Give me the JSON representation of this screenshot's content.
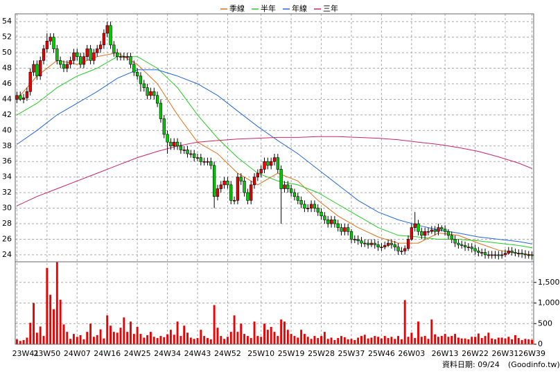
{
  "chart_data": [
    {
      "type": "candlestick",
      "legend": [
        {
          "name": "季線",
          "color": "#e0701a"
        },
        {
          "name": "半年",
          "color": "#22cc22"
        },
        {
          "name": "年線",
          "color": "#2266dd"
        },
        {
          "name": "三年",
          "color": "#cc2266"
        }
      ],
      "up_color": "#ee0000",
      "down_color": "#00cc00",
      "xlim": [
        -0.5,
        154.5
      ],
      "ylim": [
        23.1,
        55
      ],
      "yticks": [
        24,
        26,
        28,
        30,
        32,
        34,
        36,
        38,
        40,
        42,
        44,
        46,
        48,
        50,
        52,
        54
      ],
      "grid": true,
      "open": [
        44,
        44.5,
        44,
        44.2,
        45,
        47.5,
        48.5,
        47,
        49,
        50.5,
        51.5,
        52,
        50.5,
        49,
        48.5,
        48,
        48.5,
        49,
        50,
        49.5,
        48.5,
        49.5,
        50.5,
        49,
        50,
        50.5,
        51,
        52.5,
        53.5,
        51,
        50,
        49.5,
        49.5,
        49.5,
        49.5,
        48.5,
        47.5,
        47,
        46,
        45.5,
        44.5,
        45,
        44.5,
        43.5,
        41.5,
        39.5,
        38.5,
        38,
        38.5,
        38,
        37.5,
        37.5,
        37,
        37,
        36.5,
        36.5,
        36,
        36,
        36,
        35.5,
        31.5,
        32.5,
        33,
        33.5,
        33,
        31,
        31,
        34,
        33.5,
        32,
        31,
        33,
        34,
        34.5,
        35,
        36,
        35.5,
        36,
        36.5,
        35,
        32.5,
        33,
        32.5,
        32,
        31.5,
        31,
        30.5,
        30,
        30,
        30.5,
        30,
        29.5,
        29,
        28.5,
        28,
        28.5,
        28,
        27.5,
        27,
        27.5,
        27,
        26,
        26,
        25.8,
        25.5,
        25.5,
        25.3,
        25.5,
        25.3,
        25,
        25,
        25.2,
        25.5,
        25.3,
        25,
        24.5,
        24.5,
        24.8,
        26,
        27.5,
        28,
        27,
        26.5,
        27,
        27,
        27.2,
        27,
        27.5,
        27.3,
        27,
        26.5,
        26,
        25.5,
        25.3,
        25.2,
        25,
        25,
        24.8,
        24.5,
        24.3,
        24.3,
        24,
        24,
        24,
        24,
        23.9,
        24,
        24.2,
        24.5,
        24.3,
        24.2,
        24.2,
        24.1,
        24,
        24
      ],
      "high": [
        45,
        45,
        44.7,
        45.5,
        48,
        49,
        49,
        49.5,
        51,
        52.5,
        52.5,
        52.5,
        51,
        49.5,
        49,
        49,
        49.5,
        50.5,
        50.5,
        50,
        50,
        51,
        51,
        50.5,
        51,
        51.5,
        53,
        54,
        54,
        51.5,
        50.5,
        50,
        50,
        50,
        50,
        49,
        48,
        47.5,
        46.5,
        46,
        45.5,
        45.5,
        45,
        44,
        42,
        40,
        39,
        39,
        39,
        38.5,
        38,
        38,
        37.5,
        37.5,
        37,
        37,
        36.5,
        36.5,
        36.5,
        36,
        33,
        33.5,
        34,
        34,
        33.5,
        31.5,
        34.5,
        34.5,
        34,
        32.5,
        33.5,
        34.5,
        35,
        35.5,
        36.5,
        36.5,
        36.5,
        37,
        37,
        35.5,
        33.5,
        33.5,
        33,
        32.5,
        32,
        31.5,
        31,
        30.5,
        31,
        31,
        30.5,
        30,
        29.5,
        29,
        29,
        29,
        28.5,
        28,
        28,
        28,
        27.3,
        26.5,
        26.5,
        26.3,
        26,
        26,
        26,
        26,
        25.8,
        25.5,
        25.7,
        26,
        26,
        25.8,
        25.5,
        25,
        25.2,
        26.5,
        28,
        29.5,
        28.5,
        27.5,
        27.5,
        27.5,
        27.7,
        27.7,
        28,
        27.8,
        27.8,
        27.3,
        27,
        26.5,
        26,
        25.8,
        25.7,
        25.5,
        25.5,
        25.3,
        25,
        24.8,
        24.8,
        24.5,
        24.5,
        24.5,
        24.5,
        24.5,
        24.7,
        25,
        25,
        24.8,
        24.7,
        24.7,
        24.6,
        24.5,
        24.4
      ],
      "low": [
        43.5,
        43.8,
        43.5,
        43.8,
        44.5,
        47,
        46.5,
        46.5,
        48.5,
        50,
        51,
        50,
        48.5,
        48,
        47.5,
        47.5,
        48,
        48.5,
        49,
        48,
        48,
        49,
        48.5,
        48.5,
        49.5,
        50,
        50.5,
        52,
        50.5,
        49.5,
        49,
        49,
        49,
        49,
        48,
        47,
        46.5,
        45,
        45,
        44,
        44,
        44,
        43,
        41,
        39,
        37,
        37.5,
        37.5,
        37.5,
        37,
        37,
        36.5,
        36.5,
        36,
        36,
        35.5,
        35.5,
        35.5,
        35,
        30,
        31,
        32,
        32.5,
        32.5,
        30.5,
        30.5,
        30.5,
        33,
        31.5,
        30.5,
        30.5,
        32.5,
        33.5,
        34,
        34.5,
        35,
        35,
        35.5,
        34.5,
        28,
        32,
        32,
        31.5,
        31,
        30.5,
        30,
        29.5,
        29.5,
        29.5,
        29.5,
        29,
        28.5,
        28,
        27.5,
        27.5,
        27.5,
        27,
        26.5,
        26.5,
        26.5,
        25.5,
        25.5,
        25.3,
        25,
        25,
        24.8,
        25,
        24.8,
        24.5,
        24.5,
        24.7,
        25,
        24.8,
        24.5,
        24,
        24,
        24,
        24.5,
        25.8,
        27,
        26.5,
        26,
        26,
        26.5,
        26.7,
        26.5,
        26.5,
        27,
        26.5,
        26,
        25.5,
        25,
        24.8,
        24.8,
        24.5,
        24.5,
        24.3,
        24,
        23.8,
        23.8,
        23.5,
        23.5,
        23.5,
        23.5,
        23.4,
        23.5,
        23.7,
        24,
        23.9,
        23.8,
        23.7,
        23.6,
        23.5,
        23.5,
        23.4
      ],
      "close": [
        44.5,
        44,
        44.2,
        45,
        47.5,
        48.5,
        47,
        49,
        50.5,
        51.5,
        52,
        50.5,
        49,
        48.5,
        48,
        48.5,
        49,
        50,
        49.5,
        48.5,
        49.5,
        50.5,
        49,
        50,
        50.5,
        51,
        52.5,
        53.5,
        51,
        50,
        49.5,
        49.5,
        49.5,
        49.5,
        48.5,
        47.5,
        47,
        46,
        45.5,
        44.5,
        45,
        44.5,
        43.5,
        41.5,
        39.5,
        38.5,
        38,
        38.5,
        38,
        37.5,
        37.5,
        37,
        37,
        36.5,
        36.5,
        36,
        36,
        36,
        35.5,
        31.5,
        32.5,
        33,
        33.5,
        33,
        31,
        31,
        34,
        33.5,
        32,
        31,
        33,
        34,
        34.5,
        35,
        36,
        35.5,
        36,
        36.5,
        35,
        32.5,
        33,
        32.5,
        32,
        31.5,
        31,
        30.5,
        30,
        30,
        30.5,
        30,
        29.5,
        29,
        28.5,
        28,
        28.5,
        28,
        27.5,
        27,
        27.5,
        27,
        26,
        26,
        25.8,
        25.5,
        25.5,
        25.3,
        25.5,
        25.3,
        25,
        25,
        25.2,
        25.5,
        25.3,
        25,
        24.5,
        24.5,
        24.8,
        26,
        27.5,
        28,
        27,
        26.5,
        27,
        27,
        27.2,
        27,
        27.5,
        27.3,
        27,
        26.5,
        26,
        25.5,
        25.3,
        25.2,
        25,
        25,
        24.8,
        24.5,
        24.3,
        24.3,
        24,
        24,
        24,
        24,
        23.9,
        24,
        24.2,
        24.5,
        24.3,
        24.2,
        24.2,
        24.1,
        24,
        24,
        23.9
      ],
      "lines": [
        {
          "x": [
            0,
            6,
            12,
            18,
            24,
            30,
            36,
            42,
            48,
            54,
            60,
            66,
            72,
            78,
            84,
            90,
            96,
            102,
            108,
            114,
            120,
            126,
            132,
            138,
            144,
            150,
            154
          ],
          "values": [
            44,
            47,
            49,
            48.5,
            49.5,
            50,
            48.5,
            46,
            42,
            38.5,
            37,
            34.5,
            33,
            34.5,
            33.5,
            31,
            29,
            27.5,
            26.3,
            25.5,
            25.5,
            26.8,
            26.5,
            25.5,
            24.6,
            24.2,
            24
          ]
        },
        {
          "x": [
            0,
            6,
            12,
            18,
            24,
            30,
            36,
            42,
            48,
            54,
            60,
            66,
            72,
            78,
            84,
            90,
            96,
            102,
            108,
            114,
            120,
            126,
            132,
            138,
            144,
            150,
            154
          ],
          "values": [
            42,
            43.5,
            45.5,
            47,
            48,
            49.5,
            49.5,
            48,
            45.5,
            42,
            39,
            36.5,
            34.5,
            33.5,
            33,
            32,
            30.5,
            29,
            27.5,
            26.5,
            26.3,
            26,
            26,
            25.8,
            25.5,
            25.2,
            24.9
          ]
        },
        {
          "x": [
            0,
            6,
            12,
            18,
            24,
            30,
            36,
            42,
            48,
            54,
            60,
            66,
            72,
            78,
            84,
            90,
            96,
            102,
            108,
            114,
            120,
            126,
            132,
            138,
            144,
            150,
            154
          ],
          "values": [
            38.2,
            40,
            42,
            43.5,
            45,
            46.7,
            47.8,
            47.8,
            47,
            46,
            44.5,
            42.5,
            40.5,
            38.7,
            37,
            35,
            33,
            31,
            29.5,
            28.5,
            27.8,
            27.2,
            26.8,
            26.3,
            26,
            25.7,
            25.4
          ]
        },
        {
          "x": [
            0,
            6,
            12,
            18,
            24,
            30,
            36,
            42,
            48,
            54,
            60,
            66,
            72,
            78,
            84,
            90,
            96,
            102,
            108,
            114,
            120,
            126,
            132,
            138,
            144,
            150,
            154
          ],
          "values": [
            30.3,
            31.5,
            32.5,
            33.5,
            34.5,
            35.5,
            36.5,
            37.3,
            38,
            38.5,
            38.7,
            38.9,
            39,
            39.1,
            39.1,
            39.2,
            39.2,
            39.1,
            39,
            38.8,
            38.5,
            38.2,
            37.8,
            37.3,
            36.6,
            35.8,
            35.1
          ]
        }
      ]
    },
    {
      "type": "bar",
      "color": "#ee0000",
      "ylim": [
        0,
        2000
      ],
      "yticks": [
        0,
        500,
        {
          "value": 1000,
          "label": "1,000"
        },
        {
          "value": 1500,
          "label": "1,500"
        }
      ],
      "xlim": [
        -0.5,
        154.5
      ],
      "xticks": [
        {
          "value": 0,
          "label": "23W41"
        },
        {
          "value": 9,
          "label": "23W50"
        },
        {
          "value": 18,
          "label": "24W07"
        },
        {
          "value": 27,
          "label": "24W16"
        },
        {
          "value": 36,
          "label": "24W25"
        },
        {
          "value": 45,
          "label": "24W34"
        },
        {
          "value": 54,
          "label": "24W43"
        },
        {
          "value": 63,
          "label": "24W52"
        },
        {
          "value": 73,
          "label": "25W10"
        },
        {
          "value": 82,
          "label": "25W19"
        },
        {
          "value": 91,
          "label": "25W28"
        },
        {
          "value": 100,
          "label": "25W37"
        },
        {
          "value": 109,
          "label": "25W46"
        },
        {
          "value": 118,
          "label": "26W03"
        },
        {
          "value": 128,
          "label": "26W13"
        },
        {
          "value": 137,
          "label": "26W22"
        },
        {
          "value": 146,
          "label": "26W31"
        },
        {
          "value": 154,
          "label": "26W39"
        }
      ],
      "values": [
        120,
        80,
        100,
        160,
        520,
        1000,
        280,
        430,
        200,
        1850,
        1200,
        850,
        1990,
        1080,
        480,
        300,
        130,
        250,
        180,
        220,
        120,
        300,
        500,
        180,
        220,
        360,
        140,
        700,
        450,
        300,
        280,
        400,
        650,
        300,
        550,
        250,
        420,
        250,
        160,
        220,
        300,
        180,
        150,
        200,
        170,
        240,
        350,
        230,
        550,
        200,
        450,
        280,
        160,
        130,
        150,
        350,
        200,
        150,
        120,
        950,
        400,
        200,
        130,
        180,
        300,
        700,
        300,
        500,
        250,
        200,
        150,
        550,
        200,
        180,
        500,
        350,
        420,
        300,
        200,
        600,
        550,
        350,
        250,
        200,
        160,
        350,
        250,
        180,
        130,
        200,
        150,
        200,
        300,
        130,
        160,
        100,
        150,
        200,
        170,
        120,
        130,
        100,
        160,
        200,
        230,
        140,
        160,
        200,
        180,
        140,
        200,
        150,
        180,
        130,
        200,
        120,
        1070,
        180,
        280,
        150,
        550,
        180,
        200,
        130,
        600,
        240,
        180,
        200,
        250,
        180,
        200,
        250,
        160,
        140,
        140,
        120,
        180,
        180,
        260,
        150,
        200,
        280,
        140,
        120,
        160,
        160,
        140,
        180,
        120,
        220,
        150,
        100,
        130,
        120,
        110
      ],
      "source_date": "資料日期: 09/24",
      "source": "(Goodinfo.tw)"
    }
  ]
}
